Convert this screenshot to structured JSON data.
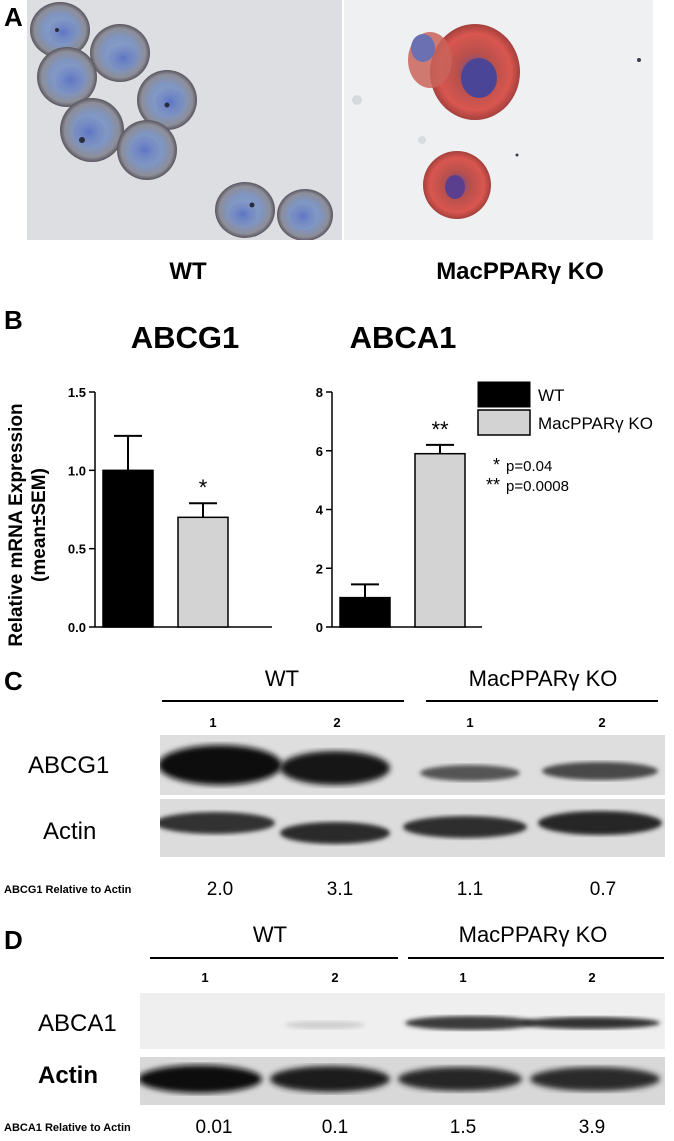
{
  "panel_labels": {
    "A": "A",
    "B": "B",
    "C": "C",
    "D": "D"
  },
  "panel_a": {
    "wt_label": "WT",
    "ko_label": "MacPPARγ KO"
  },
  "panel_b": {
    "y_axis_label_line1": "Relative mRNA Expression",
    "y_axis_label_line2": "(mean±SEM)",
    "legend": {
      "wt": "WT",
      "ko": "MacPPARγ KO"
    },
    "pvalues": [
      {
        "stars": "*",
        "text": "p=0.04"
      },
      {
        "stars": "**",
        "text": "p=0.0008"
      }
    ],
    "colors": {
      "wt": "#000000",
      "ko": "#d3d3d3"
    }
  },
  "chart_data": [
    {
      "type": "bar",
      "title": "ABCG1",
      "categories": [
        "WT",
        "MacPPARγ KO"
      ],
      "values": [
        1.0,
        0.7
      ],
      "errors": [
        0.22,
        0.09
      ],
      "ylim": [
        0,
        1.5
      ],
      "yticks": [
        "0.0",
        "0.5",
        "1.0",
        "1.5"
      ],
      "significance": [
        "",
        "*"
      ]
    },
    {
      "type": "bar",
      "title": "ABCA1",
      "categories": [
        "WT",
        "MacPPARγ KO"
      ],
      "values": [
        1.0,
        5.9
      ],
      "errors": [
        0.45,
        0.3
      ],
      "ylim": [
        0,
        8
      ],
      "yticks": [
        "0",
        "2",
        "4",
        "6",
        "8"
      ],
      "significance": [
        "",
        "**"
      ]
    }
  ],
  "panel_c": {
    "wt_group": "WT",
    "ko_group": "MacPPARγ KO",
    "lanes": [
      "1",
      "2",
      "1",
      "2"
    ],
    "protein": "ABCG1",
    "control": "Actin",
    "quant_label": "ABCG1 Relative to Actin",
    "quant_values": [
      "2.0",
      "3.1",
      "1.1",
      "0.7"
    ]
  },
  "panel_d": {
    "wt_group": "WT",
    "ko_group": "MacPPARγ KO",
    "lanes": [
      "1",
      "2",
      "1",
      "2"
    ],
    "protein": "ABCA1",
    "control": "Actin",
    "quant_label": "ABCA1 Relative to Actin",
    "quant_values": [
      "0.01",
      "0.1",
      "1.5",
      "3.9"
    ]
  }
}
